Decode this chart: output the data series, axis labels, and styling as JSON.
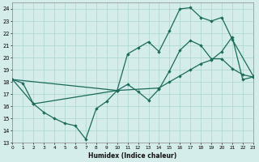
{
  "xlabel": "Humidex (Indice chaleur)",
  "xlim": [
    0,
    23
  ],
  "ylim": [
    13,
    24.5
  ],
  "yticks": [
    13,
    14,
    15,
    16,
    17,
    18,
    19,
    20,
    21,
    22,
    23,
    24
  ],
  "xticks": [
    0,
    1,
    2,
    3,
    4,
    5,
    6,
    7,
    8,
    9,
    10,
    11,
    12,
    13,
    14,
    15,
    16,
    17,
    18,
    19,
    20,
    21,
    22,
    23
  ],
  "bg_color": "#d4ecea",
  "grid_color": "#b2d8d5",
  "line_color": "#1a6b5a",
  "line1_x": [
    0,
    1,
    2,
    3,
    4,
    5,
    6,
    7,
    8,
    9,
    10,
    11,
    12,
    13,
    14,
    15,
    16,
    17,
    18,
    19,
    20,
    21,
    22,
    23
  ],
  "line1_y": [
    18.2,
    17.9,
    16.2,
    15.5,
    15.0,
    14.6,
    14.4,
    13.3,
    15.8,
    16.4,
    17.3,
    17.8,
    17.2,
    16.5,
    17.4,
    18.9,
    20.6,
    21.4,
    21.0,
    19.9,
    19.9,
    19.1,
    18.6,
    18.4
  ],
  "line2_x": [
    0,
    2,
    10,
    11,
    12,
    13,
    14,
    15,
    16,
    17,
    18,
    19,
    20,
    21,
    23
  ],
  "line2_y": [
    18.2,
    16.2,
    17.3,
    20.3,
    20.8,
    21.3,
    20.5,
    22.2,
    24.0,
    24.1,
    23.3,
    23.0,
    23.3,
    21.5,
    18.5
  ],
  "line3_x": [
    0,
    10,
    14,
    15,
    16,
    17,
    18,
    19,
    20,
    21,
    22,
    23
  ],
  "line3_y": [
    18.2,
    17.3,
    17.5,
    18.0,
    18.5,
    19.0,
    19.5,
    19.8,
    20.5,
    21.7,
    18.2,
    18.4
  ]
}
